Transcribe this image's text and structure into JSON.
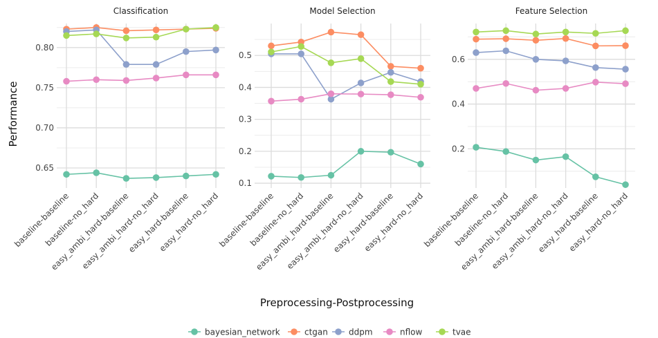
{
  "xlabel": "Preprocessing-Postprocessing",
  "ylabel": "Performance",
  "chart_data": {
    "type": "line",
    "categories": [
      "baseline-baseline",
      "baseline-no_hard",
      "easy_ambi_hard-baseline",
      "easy_ambi_hard-no_hard",
      "easy_hard-baseline",
      "easy_hard-no_hard"
    ],
    "legend_position": "bottom",
    "grid": true,
    "series_colors": {
      "bayesian_network": "#66c2a5",
      "ctgan": "#fc8d62",
      "ddpm": "#8da0cb",
      "nflow": "#e78ac3",
      "tvae": "#a6d854"
    },
    "legend": [
      "bayesian_network",
      "ctgan",
      "ddpm",
      "nflow",
      "tvae"
    ],
    "panels": [
      {
        "title": "Classification",
        "ylim": [
          0.625,
          0.83
        ],
        "yticks": [
          0.65,
          0.7,
          0.75,
          0.8
        ],
        "ytick_labels": [
          "0.65",
          "0.70",
          "0.75",
          "0.80"
        ],
        "series": [
          {
            "name": "bayesian_network",
            "values": [
              0.642,
              0.644,
              0.637,
              0.638,
              0.64,
              0.642
            ]
          },
          {
            "name": "ctgan",
            "values": [
              0.823,
              0.825,
              0.821,
              0.822,
              0.823,
              0.824
            ]
          },
          {
            "name": "ddpm",
            "values": [
              0.82,
              0.822,
              0.779,
              0.779,
              0.795,
              0.797
            ]
          },
          {
            "name": "nflow",
            "values": [
              0.758,
              0.76,
              0.759,
              0.762,
              0.766,
              0.766
            ]
          },
          {
            "name": "tvae",
            "values": [
              0.815,
              0.817,
              0.812,
              0.813,
              0.823,
              0.825
            ]
          }
        ]
      },
      {
        "title": "Model Selection",
        "ylim": [
          0.085,
          0.6
        ],
        "yticks": [
          0.1,
          0.2,
          0.3,
          0.4,
          0.5
        ],
        "ytick_labels": [
          "0.1",
          "0.2",
          "0.3",
          "0.4",
          "0.5"
        ],
        "series": [
          {
            "name": "bayesian_network",
            "values": [
              0.122,
              0.118,
              0.125,
              0.2,
              0.197,
              0.16
            ]
          },
          {
            "name": "ctgan",
            "values": [
              0.53,
              0.542,
              0.573,
              0.565,
              0.466,
              0.46
            ]
          },
          {
            "name": "ddpm",
            "values": [
              0.505,
              0.505,
              0.363,
              0.414,
              0.447,
              0.418
            ]
          },
          {
            "name": "nflow",
            "values": [
              0.357,
              0.363,
              0.38,
              0.379,
              0.377,
              0.369
            ]
          },
          {
            "name": "tvae",
            "values": [
              0.511,
              0.528,
              0.477,
              0.49,
              0.418,
              0.41
            ]
          }
        ]
      },
      {
        "title": "Feature Selection",
        "ylim": [
          0.025,
          0.76
        ],
        "yticks": [
          0.2,
          0.4,
          0.6
        ],
        "ytick_labels": [
          "0.2",
          "0.4",
          "0.6"
        ],
        "series": [
          {
            "name": "bayesian_network",
            "values": [
              0.207,
              0.188,
              0.15,
              0.165,
              0.075,
              0.04
            ]
          },
          {
            "name": "ctgan",
            "values": [
              0.69,
              0.692,
              0.685,
              0.693,
              0.66,
              0.661
            ]
          },
          {
            "name": "ddpm",
            "values": [
              0.63,
              0.638,
              0.6,
              0.593,
              0.563,
              0.556
            ]
          },
          {
            "name": "nflow",
            "values": [
              0.47,
              0.492,
              0.462,
              0.47,
              0.498,
              0.491
            ]
          },
          {
            "name": "tvae",
            "values": [
              0.722,
              0.728,
              0.713,
              0.722,
              0.716,
              0.728
            ]
          }
        ]
      }
    ]
  }
}
